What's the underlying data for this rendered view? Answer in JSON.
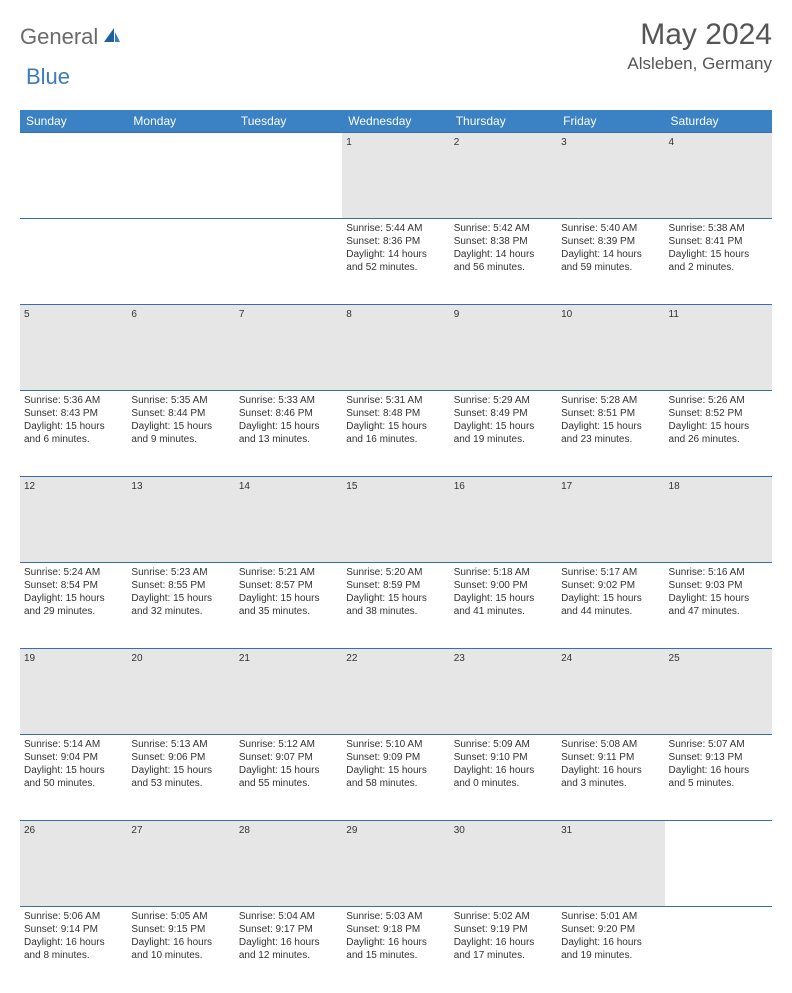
{
  "logo": {
    "general": "General",
    "blue": "Blue"
  },
  "header": {
    "month": "May 2024",
    "location": "Alsleben, Germany"
  },
  "colors": {
    "header_bg": "#3b82c4",
    "header_text": "#ffffff",
    "daynum_bg": "#e6e6e6",
    "border": "#3b6fa3",
    "logo_gray": "#6a6a6a",
    "logo_blue": "#3b7bbf"
  },
  "weekdays": [
    "Sunday",
    "Monday",
    "Tuesday",
    "Wednesday",
    "Thursday",
    "Friday",
    "Saturday"
  ],
  "weeks": [
    {
      "nums": [
        "",
        "",
        "",
        "1",
        "2",
        "3",
        "4"
      ],
      "cells": [
        [],
        [],
        [],
        [
          "Sunrise: 5:44 AM",
          "Sunset: 8:36 PM",
          "Daylight: 14 hours",
          "and 52 minutes."
        ],
        [
          "Sunrise: 5:42 AM",
          "Sunset: 8:38 PM",
          "Daylight: 14 hours",
          "and 56 minutes."
        ],
        [
          "Sunrise: 5:40 AM",
          "Sunset: 8:39 PM",
          "Daylight: 14 hours",
          "and 59 minutes."
        ],
        [
          "Sunrise: 5:38 AM",
          "Sunset: 8:41 PM",
          "Daylight: 15 hours",
          "and 2 minutes."
        ]
      ]
    },
    {
      "nums": [
        "5",
        "6",
        "7",
        "8",
        "9",
        "10",
        "11"
      ],
      "cells": [
        [
          "Sunrise: 5:36 AM",
          "Sunset: 8:43 PM",
          "Daylight: 15 hours",
          "and 6 minutes."
        ],
        [
          "Sunrise: 5:35 AM",
          "Sunset: 8:44 PM",
          "Daylight: 15 hours",
          "and 9 minutes."
        ],
        [
          "Sunrise: 5:33 AM",
          "Sunset: 8:46 PM",
          "Daylight: 15 hours",
          "and 13 minutes."
        ],
        [
          "Sunrise: 5:31 AM",
          "Sunset: 8:48 PM",
          "Daylight: 15 hours",
          "and 16 minutes."
        ],
        [
          "Sunrise: 5:29 AM",
          "Sunset: 8:49 PM",
          "Daylight: 15 hours",
          "and 19 minutes."
        ],
        [
          "Sunrise: 5:28 AM",
          "Sunset: 8:51 PM",
          "Daylight: 15 hours",
          "and 23 minutes."
        ],
        [
          "Sunrise: 5:26 AM",
          "Sunset: 8:52 PM",
          "Daylight: 15 hours",
          "and 26 minutes."
        ]
      ]
    },
    {
      "nums": [
        "12",
        "13",
        "14",
        "15",
        "16",
        "17",
        "18"
      ],
      "cells": [
        [
          "Sunrise: 5:24 AM",
          "Sunset: 8:54 PM",
          "Daylight: 15 hours",
          "and 29 minutes."
        ],
        [
          "Sunrise: 5:23 AM",
          "Sunset: 8:55 PM",
          "Daylight: 15 hours",
          "and 32 minutes."
        ],
        [
          "Sunrise: 5:21 AM",
          "Sunset: 8:57 PM",
          "Daylight: 15 hours",
          "and 35 minutes."
        ],
        [
          "Sunrise: 5:20 AM",
          "Sunset: 8:59 PM",
          "Daylight: 15 hours",
          "and 38 minutes."
        ],
        [
          "Sunrise: 5:18 AM",
          "Sunset: 9:00 PM",
          "Daylight: 15 hours",
          "and 41 minutes."
        ],
        [
          "Sunrise: 5:17 AM",
          "Sunset: 9:02 PM",
          "Daylight: 15 hours",
          "and 44 minutes."
        ],
        [
          "Sunrise: 5:16 AM",
          "Sunset: 9:03 PM",
          "Daylight: 15 hours",
          "and 47 minutes."
        ]
      ]
    },
    {
      "nums": [
        "19",
        "20",
        "21",
        "22",
        "23",
        "24",
        "25"
      ],
      "cells": [
        [
          "Sunrise: 5:14 AM",
          "Sunset: 9:04 PM",
          "Daylight: 15 hours",
          "and 50 minutes."
        ],
        [
          "Sunrise: 5:13 AM",
          "Sunset: 9:06 PM",
          "Daylight: 15 hours",
          "and 53 minutes."
        ],
        [
          "Sunrise: 5:12 AM",
          "Sunset: 9:07 PM",
          "Daylight: 15 hours",
          "and 55 minutes."
        ],
        [
          "Sunrise: 5:10 AM",
          "Sunset: 9:09 PM",
          "Daylight: 15 hours",
          "and 58 minutes."
        ],
        [
          "Sunrise: 5:09 AM",
          "Sunset: 9:10 PM",
          "Daylight: 16 hours",
          "and 0 minutes."
        ],
        [
          "Sunrise: 5:08 AM",
          "Sunset: 9:11 PM",
          "Daylight: 16 hours",
          "and 3 minutes."
        ],
        [
          "Sunrise: 5:07 AM",
          "Sunset: 9:13 PM",
          "Daylight: 16 hours",
          "and 5 minutes."
        ]
      ]
    },
    {
      "nums": [
        "26",
        "27",
        "28",
        "29",
        "30",
        "31",
        ""
      ],
      "cells": [
        [
          "Sunrise: 5:06 AM",
          "Sunset: 9:14 PM",
          "Daylight: 16 hours",
          "and 8 minutes."
        ],
        [
          "Sunrise: 5:05 AM",
          "Sunset: 9:15 PM",
          "Daylight: 16 hours",
          "and 10 minutes."
        ],
        [
          "Sunrise: 5:04 AM",
          "Sunset: 9:17 PM",
          "Daylight: 16 hours",
          "and 12 minutes."
        ],
        [
          "Sunrise: 5:03 AM",
          "Sunset: 9:18 PM",
          "Daylight: 16 hours",
          "and 15 minutes."
        ],
        [
          "Sunrise: 5:02 AM",
          "Sunset: 9:19 PM",
          "Daylight: 16 hours",
          "and 17 minutes."
        ],
        [
          "Sunrise: 5:01 AM",
          "Sunset: 9:20 PM",
          "Daylight: 16 hours",
          "and 19 minutes."
        ],
        []
      ]
    }
  ]
}
